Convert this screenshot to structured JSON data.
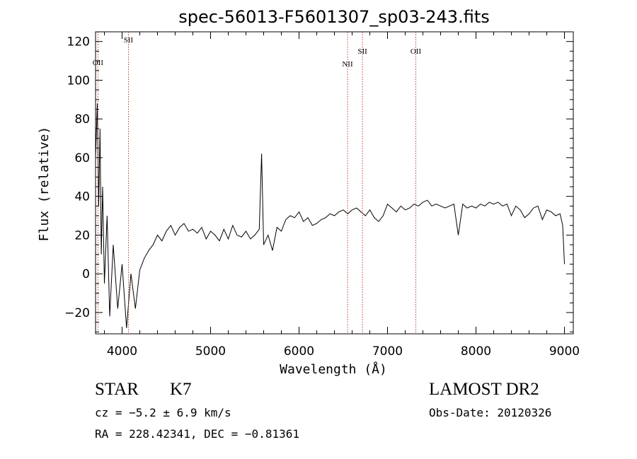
{
  "chart_data": {
    "type": "line",
    "title": "spec-56013-F5601307_sp03-243.fits",
    "xlabel": "Wavelength (Å)",
    "ylabel": "Flux (relative)",
    "xlim": [
      3700,
      9100
    ],
    "ylim": [
      -31,
      125
    ],
    "x_ticks": [
      "4000",
      "5000",
      "6000",
      "7000",
      "8000",
      "9000"
    ],
    "x_tick_values": [
      4000,
      5000,
      6000,
      7000,
      8000,
      9000
    ],
    "y_ticks": [
      "−20",
      "0",
      "20",
      "40",
      "60",
      "80",
      "100",
      "120"
    ],
    "y_tick_values": [
      -20,
      0,
      20,
      40,
      60,
      80,
      100,
      120
    ],
    "lines": [
      {
        "label": "OII",
        "wavelength": 3727
      },
      {
        "label": "SII",
        "wavelength": 4072
      },
      {
        "label": "NII",
        "wavelength": 6548
      },
      {
        "label": "SII",
        "wavelength": 6717
      },
      {
        "label": "OII",
        "wavelength": 7320
      }
    ],
    "spectrum": {
      "x": [
        3700,
        3720,
        3735,
        3750,
        3765,
        3780,
        3800,
        3830,
        3860,
        3900,
        3950,
        4000,
        4050,
        4100,
        4150,
        4200,
        4250,
        4300,
        4350,
        4400,
        4450,
        4500,
        4550,
        4600,
        4650,
        4700,
        4750,
        4800,
        4850,
        4900,
        4950,
        5000,
        5050,
        5100,
        5150,
        5200,
        5250,
        5300,
        5350,
        5400,
        5450,
        5500,
        5550,
        5577,
        5600,
        5650,
        5700,
        5750,
        5800,
        5850,
        5900,
        5950,
        6000,
        6050,
        6100,
        6150,
        6200,
        6250,
        6300,
        6350,
        6400,
        6450,
        6500,
        6550,
        6600,
        6650,
        6700,
        6750,
        6800,
        6850,
        6900,
        6950,
        7000,
        7050,
        7100,
        7150,
        7200,
        7250,
        7300,
        7350,
        7400,
        7450,
        7500,
        7550,
        7600,
        7650,
        7700,
        7750,
        7800,
        7850,
        7900,
        7950,
        8000,
        8050,
        8100,
        8150,
        8200,
        8250,
        8300,
        8350,
        8400,
        8450,
        8500,
        8550,
        8600,
        8650,
        8700,
        8750,
        8800,
        8850,
        8900,
        8950,
        8980,
        9000
      ],
      "y": [
        60,
        88,
        35,
        75,
        10,
        45,
        -5,
        30,
        -22,
        15,
        -18,
        5,
        -28,
        0,
        -18,
        2,
        8,
        12,
        15,
        20,
        17,
        22,
        25,
        20,
        24,
        26,
        22,
        23,
        21,
        24,
        18,
        22,
        20,
        17,
        23,
        18,
        25,
        20,
        19,
        22,
        18,
        20,
        23,
        62,
        15,
        20,
        12,
        24,
        22,
        28,
        30,
        29,
        32,
        27,
        29,
        25,
        26,
        28,
        29,
        31,
        30,
        32,
        33,
        31,
        33,
        34,
        32,
        30,
        33,
        29,
        27,
        30,
        36,
        34,
        32,
        35,
        33,
        34,
        36,
        35,
        37,
        38,
        35,
        36,
        35,
        34,
        35,
        36,
        20,
        36,
        34,
        35,
        34,
        36,
        35,
        37,
        36,
        37,
        35,
        36,
        30,
        35,
        33,
        29,
        31,
        34,
        35,
        28,
        33,
        32,
        30,
        31,
        25,
        5
      ]
    }
  },
  "info": {
    "class_label": "STAR",
    "subclass_label": "K7",
    "redshift_text": "cz = −5.2 ± 6.9 km/s",
    "coords_text": "RA = 228.42341, DEC =  −0.81361",
    "survey_label": "LAMOST DR2",
    "obs_date_text": "Obs-Date: 20120326"
  }
}
